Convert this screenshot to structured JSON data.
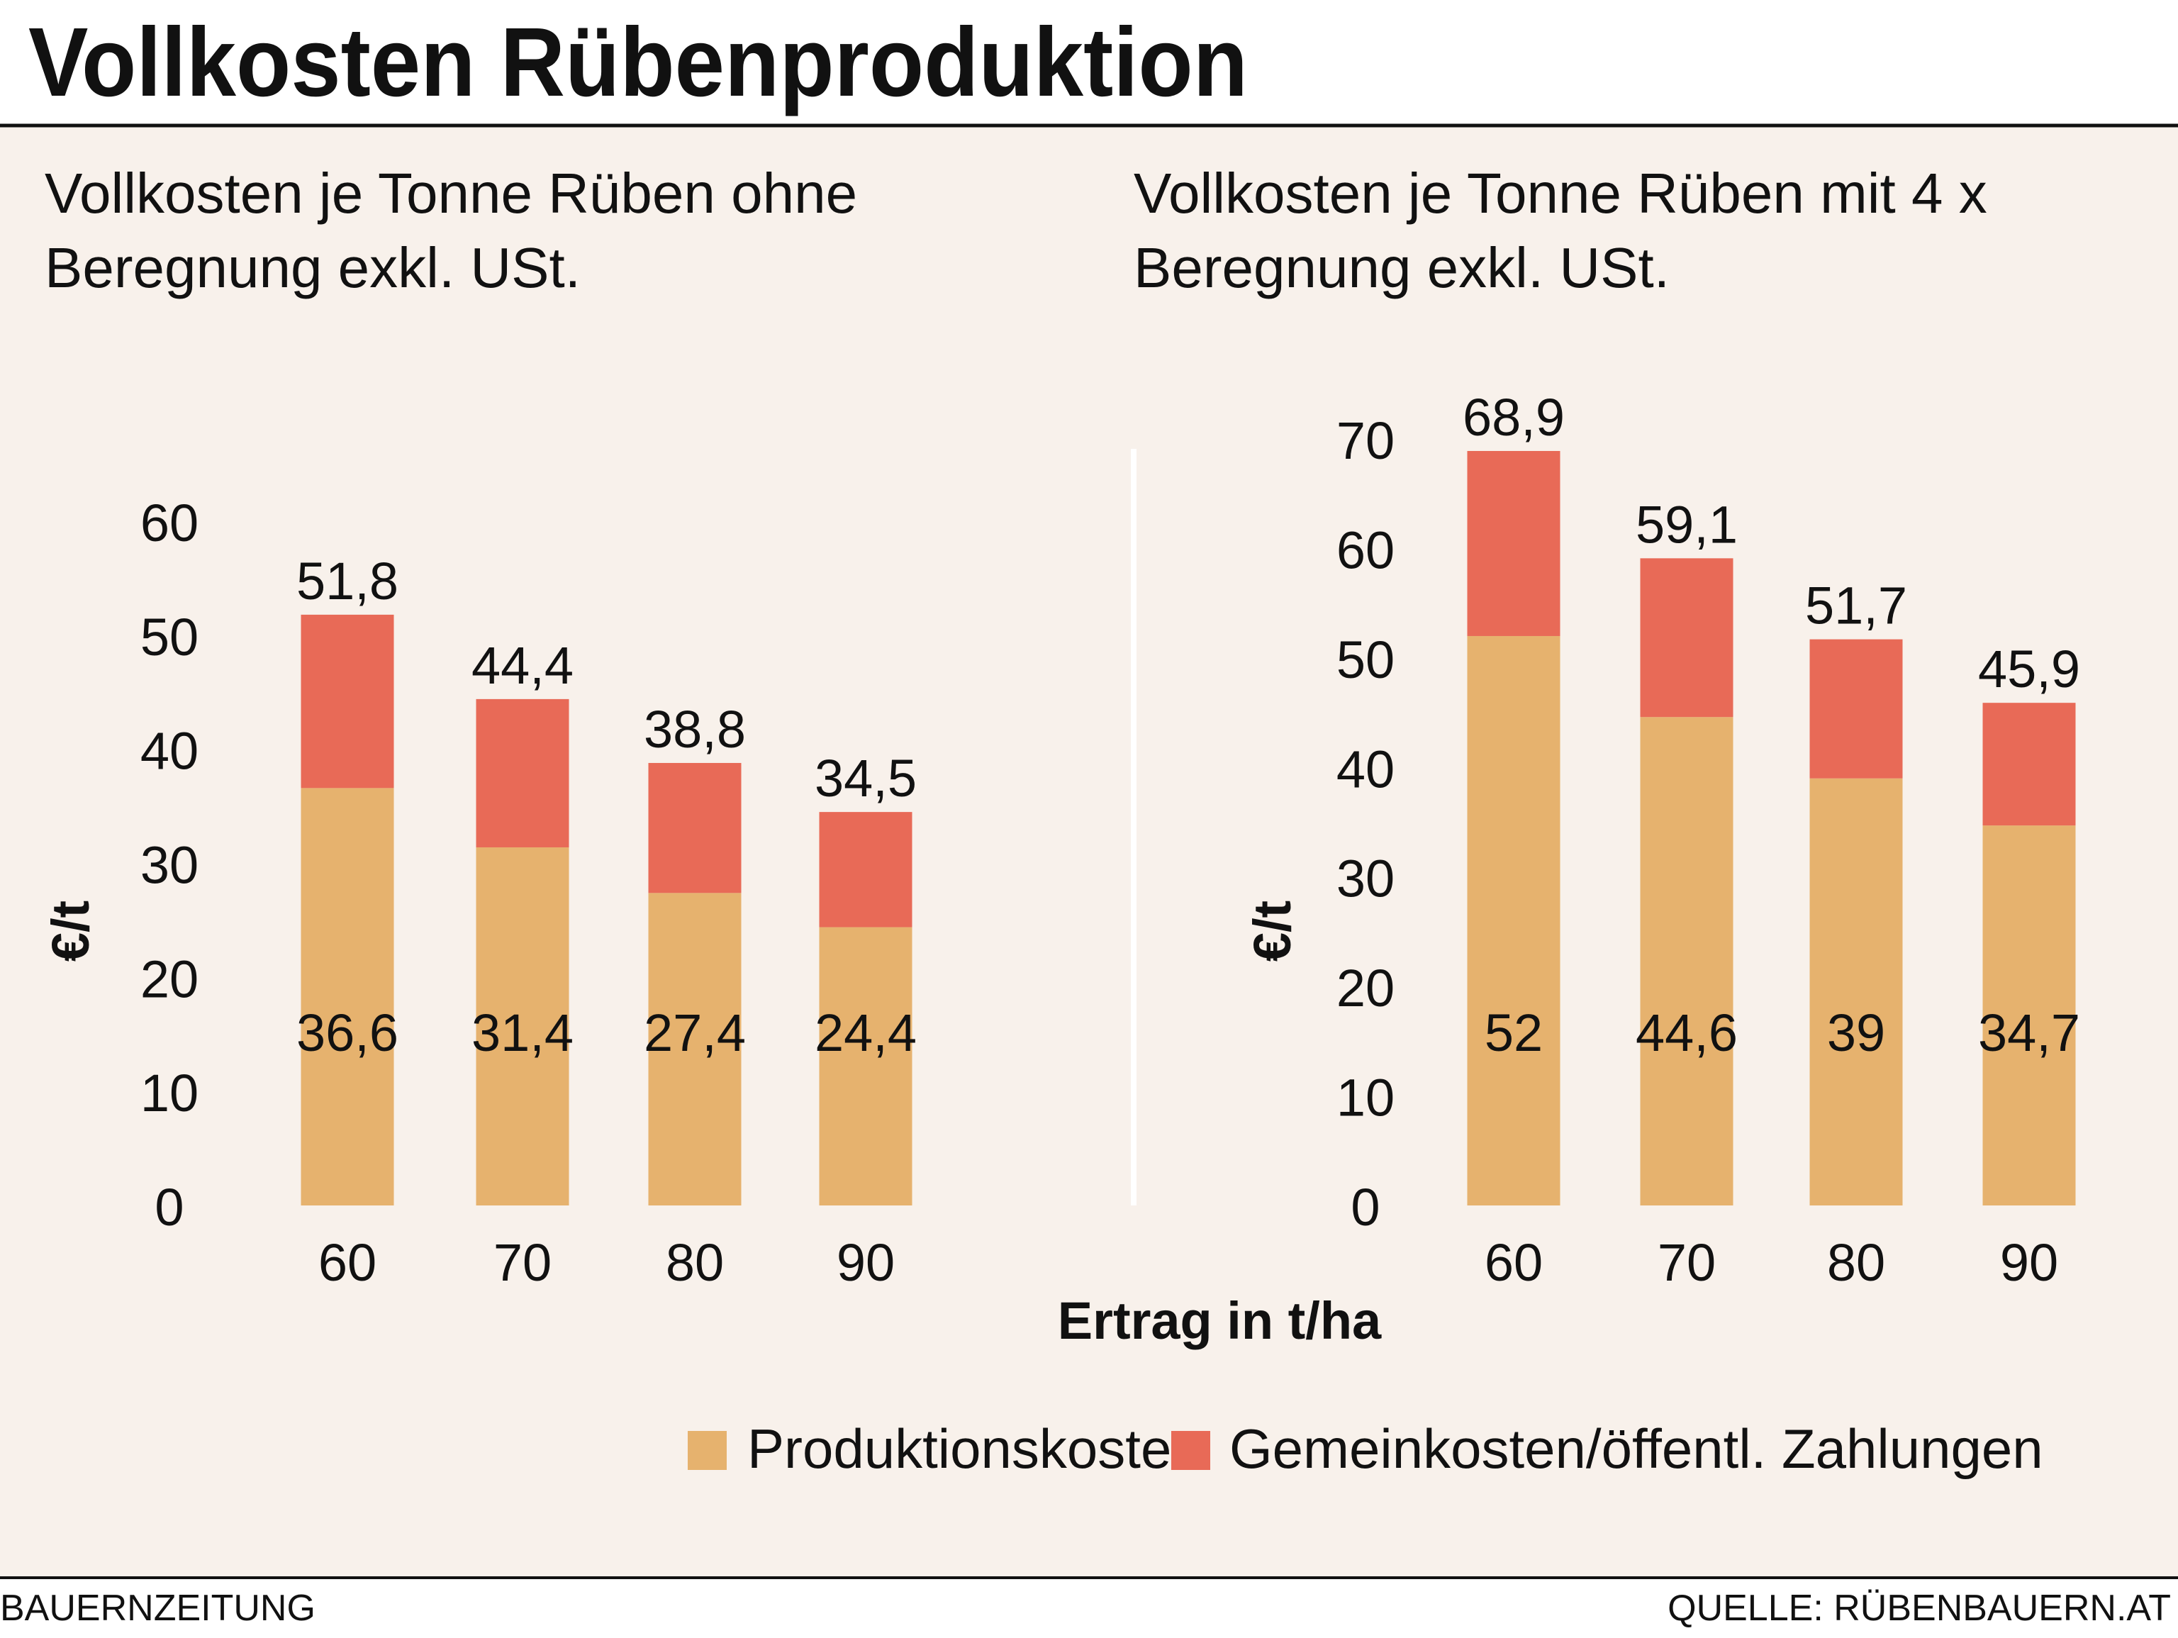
{
  "title": "Vollkosten Rübenproduktion",
  "footer": {
    "left": "BAUERNZEITUNG",
    "right": "QUELLE: RÜBENBAUERN.AT"
  },
  "colors": {
    "background": "#F8F1EB",
    "produktionskosten": "#E6B26E",
    "gemeinkosten": "#E86A57",
    "divider": "#FFFFFF"
  },
  "xlabel": "Ertrag in t/ha",
  "legend": {
    "items": [
      {
        "label": "Produktionskosten",
        "color": "#E6B26E"
      },
      {
        "label": "Gemeinkosten/öffentl. Zahlungen",
        "color": "#E86A57"
      }
    ],
    "placement": "bottom"
  },
  "chart_data": [
    {
      "type": "bar",
      "stacked": true,
      "title": "Vollkosten je Tonne Rüben ohne Beregnung exkl. USt.",
      "title_lines": [
        "Vollkosten je Tonne Rüben ohne",
        "Beregnung exkl. USt."
      ],
      "ylabel": "€/t",
      "xlabel": "Ertrag in t/ha",
      "ylim": [
        0,
        60
      ],
      "yticks": [
        "0",
        "10",
        "20",
        "30",
        "40",
        "50",
        "60"
      ],
      "categories": [
        "60",
        "70",
        "80",
        "90"
      ],
      "series": [
        {
          "name": "Produktionskosten",
          "values": [
            36.6,
            31.4,
            27.4,
            24.4
          ],
          "labels": [
            "36,6",
            "31,4",
            "27,4",
            "24,4"
          ]
        },
        {
          "name": "Gemeinkosten/öffentl. Zahlungen",
          "values": [
            15.2,
            13.0,
            11.4,
            10.1
          ]
        }
      ],
      "totals": [
        51.8,
        44.4,
        38.8,
        34.5
      ],
      "total_labels": [
        "51,8",
        "44,4",
        "38,8",
        "34,5"
      ],
      "grid": false
    },
    {
      "type": "bar",
      "stacked": true,
      "title": "Vollkosten je Tonne Rüben mit 4 x Beregnung exkl. USt.",
      "title_lines": [
        "Vollkosten je Tonne Rüben mit 4 x",
        "Beregnung exkl. USt."
      ],
      "ylabel": "€/t",
      "xlabel": "Ertrag in t/ha",
      "ylim": [
        0,
        70
      ],
      "yticks": [
        "0",
        "10",
        "20",
        "30",
        "40",
        "50",
        "60",
        "70"
      ],
      "categories": [
        "60",
        "70",
        "80",
        "90"
      ],
      "series": [
        {
          "name": "Produktionskosten",
          "values": [
            52,
            44.6,
            39,
            34.7
          ],
          "labels": [
            "52",
            "44,6",
            "39",
            "34,7"
          ]
        },
        {
          "name": "Gemeinkosten/öffentl. Zahlungen",
          "values": [
            16.9,
            14.5,
            12.7,
            11.2
          ]
        }
      ],
      "totals": [
        68.9,
        59.1,
        51.7,
        45.9
      ],
      "total_labels": [
        "68,9",
        "59,1",
        "51,7",
        "45,9"
      ],
      "grid": false
    }
  ]
}
